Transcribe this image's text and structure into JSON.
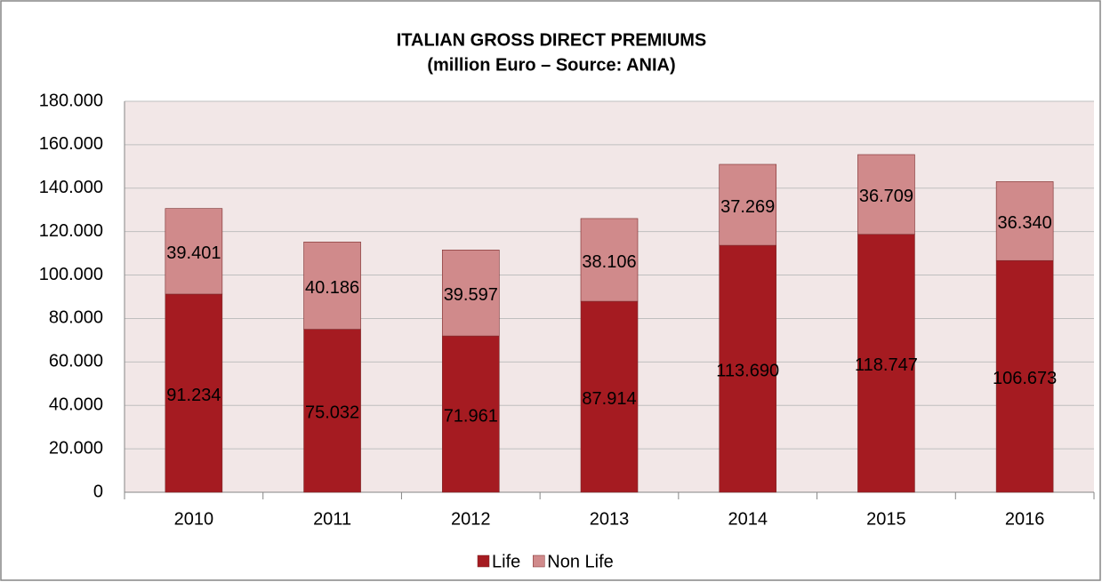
{
  "chart_data": {
    "type": "stacked-bar",
    "title": "ITALIAN GROSS DIRECT PREMIUMS",
    "subtitle": "(million Euro – Source: ANIA)",
    "categories": [
      "2010",
      "2011",
      "2012",
      "2013",
      "2014",
      "2015",
      "2016"
    ],
    "series": [
      {
        "name": "Life",
        "color": "#a51b21",
        "values": [
          91234,
          75032,
          71961,
          87914,
          113690,
          118747,
          106673
        ],
        "value_labels": [
          "91.234",
          "75.032",
          "71.961",
          "87.914",
          "113.690",
          "118.747",
          "106.673"
        ]
      },
      {
        "name": "Non Life",
        "color": "#d08a8b",
        "values": [
          39401,
          40186,
          39597,
          38106,
          37269,
          36709,
          36340
        ],
        "value_labels": [
          "39.401",
          "40.186",
          "39.597",
          "38.106",
          "37.269",
          "36.709",
          "36.340"
        ]
      }
    ],
    "ylim": [
      0,
      180000
    ],
    "yticks": [
      0,
      {
        "value": 20000,
        "label": "20.000"
      },
      {
        "value": 40000,
        "label": "40.000"
      },
      {
        "value": 60000,
        "label": "60.000"
      },
      {
        "value": 80000,
        "label": "80.000"
      },
      {
        "value": 100000,
        "label": "100.000"
      },
      {
        "value": 120000,
        "label": "120.000"
      },
      {
        "value": 140000,
        "label": "140.000"
      },
      {
        "value": 160000,
        "label": "160.000"
      },
      {
        "value": 180000,
        "label": "180.000"
      }
    ],
    "grid": true,
    "legend": "bottom"
  }
}
